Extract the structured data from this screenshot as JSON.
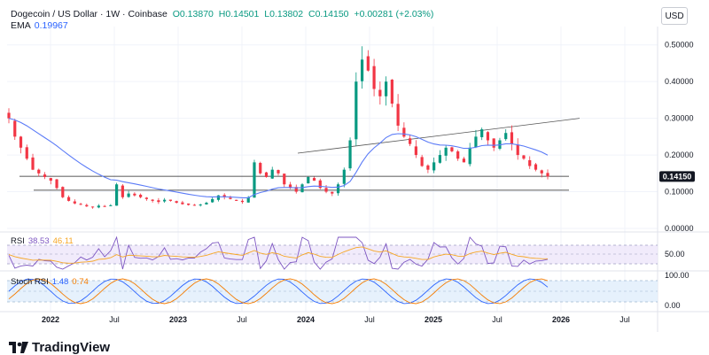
{
  "header": {
    "symbol": "Dogecoin / US Dollar · 1W · Coinbase",
    "open": "O0.13870",
    "high": "H0.14501",
    "low": "L0.13802",
    "close": "C0.14150",
    "change": "+0.00281 (+2.03%)"
  },
  "ema": {
    "label": "EMA",
    "value": "0.19967"
  },
  "currency": "USD",
  "price_badge": "0.14150",
  "rsi": {
    "label": "RSI",
    "value": "38.53",
    "ma_value": "46.11",
    "axis_label": "50.00"
  },
  "stoch": {
    "label": "Stoch RSI",
    "k": "1.48",
    "d": "0.74",
    "axis_top": "100.00",
    "axis_bottom": "0.00"
  },
  "brand": "TradingView",
  "colors": {
    "up": "#089981",
    "down": "#f23645",
    "ema": "#2962ff",
    "rsi": "#7e57c2",
    "rsi_ma": "#f6a623",
    "stoch_k": "#2962ff",
    "stoch_d": "#f57c00"
  },
  "chart_data": {
    "type": "candlestick",
    "ylim": [
      0,
      0.55
    ],
    "y_ticks": [
      "0.50000",
      "0.40000",
      "0.30000",
      "0.20000",
      "0.10000",
      "0.00000"
    ],
    "x_ticks": [
      "2022",
      "Jul",
      "2023",
      "Jul",
      "2024",
      "Jul",
      "2025",
      "Jul",
      "2026",
      "Jul"
    ],
    "weekly_close": [
      0.3,
      0.25,
      0.22,
      0.19,
      0.16,
      0.15,
      0.14,
      0.13,
      0.11,
      0.085,
      0.075,
      0.068,
      0.065,
      0.06,
      0.058,
      0.062,
      0.06,
      0.063,
      0.12,
      0.085,
      0.095,
      0.09,
      0.085,
      0.08,
      0.075,
      0.072,
      0.078,
      0.075,
      0.07,
      0.066,
      0.064,
      0.062,
      0.065,
      0.07,
      0.08,
      0.09,
      0.085,
      0.08,
      0.075,
      0.072,
      0.085,
      0.18,
      0.15,
      0.14,
      0.16,
      0.15,
      0.12,
      0.11,
      0.1,
      0.12,
      0.14,
      0.13,
      0.11,
      0.1,
      0.095,
      0.12,
      0.16,
      0.24,
      0.4,
      0.46,
      0.43,
      0.38,
      0.36,
      0.4,
      0.34,
      0.28,
      0.25,
      0.23,
      0.2,
      0.17,
      0.16,
      0.18,
      0.2,
      0.22,
      0.21,
      0.19,
      0.18,
      0.22,
      0.25,
      0.27,
      0.24,
      0.22,
      0.24,
      0.26,
      0.23,
      0.2,
      0.19,
      0.17,
      0.16,
      0.15,
      0.1415
    ],
    "ema_value": 0.19967,
    "support_lines": [
      0.142,
      0.104
    ],
    "trend_line": {
      "start": 0.205,
      "end": 0.3
    }
  }
}
